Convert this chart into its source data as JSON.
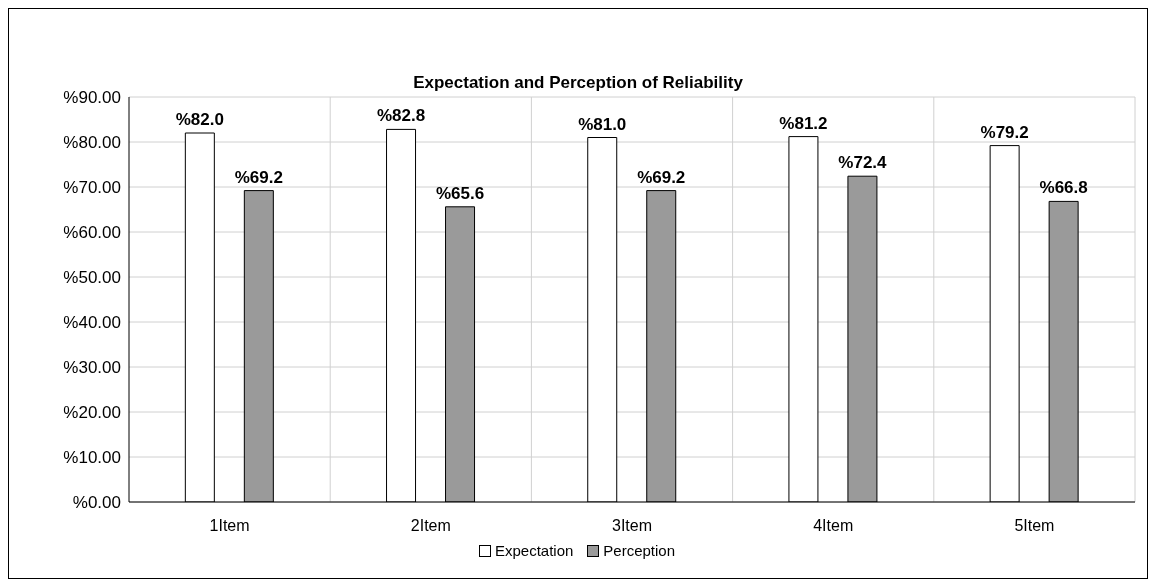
{
  "chart_data": {
    "type": "bar",
    "title": "Expectation and Perception of Reliability",
    "categories": [
      "1Item",
      "2Item",
      "3Item",
      "4Item",
      "5Item"
    ],
    "series": [
      {
        "name": "Expectation",
        "color": "#ffffff",
        "values": [
          82.0,
          82.8,
          81.0,
          81.2,
          79.2
        ],
        "value_labels": [
          "%82.0",
          "%82.8",
          "%81.0",
          "%81.2",
          "%79.2"
        ]
      },
      {
        "name": "Perception",
        "color": "#9a9a9a",
        "values": [
          69.2,
          65.6,
          69.2,
          72.4,
          66.8
        ],
        "value_labels": [
          "%69.2",
          "%65.6",
          "%69.2",
          "%72.4",
          "%66.8"
        ]
      }
    ],
    "ylim": [
      0,
      90
    ],
    "yticks": [
      {
        "value": 0,
        "label": "%0.00"
      },
      {
        "value": 10,
        "label": "%10.00"
      },
      {
        "value": 20,
        "label": "%20.00"
      },
      {
        "value": 30,
        "label": "%30.00"
      },
      {
        "value": 40,
        "label": "%40.00"
      },
      {
        "value": 50,
        "label": "%50.00"
      },
      {
        "value": 60,
        "label": "%60.00"
      },
      {
        "value": 70,
        "label": "%70.00"
      },
      {
        "value": 80,
        "label": "%80.00"
      },
      {
        "value": 90,
        "label": "%90.00"
      }
    ],
    "grid": true,
    "legend": "bottom"
  }
}
